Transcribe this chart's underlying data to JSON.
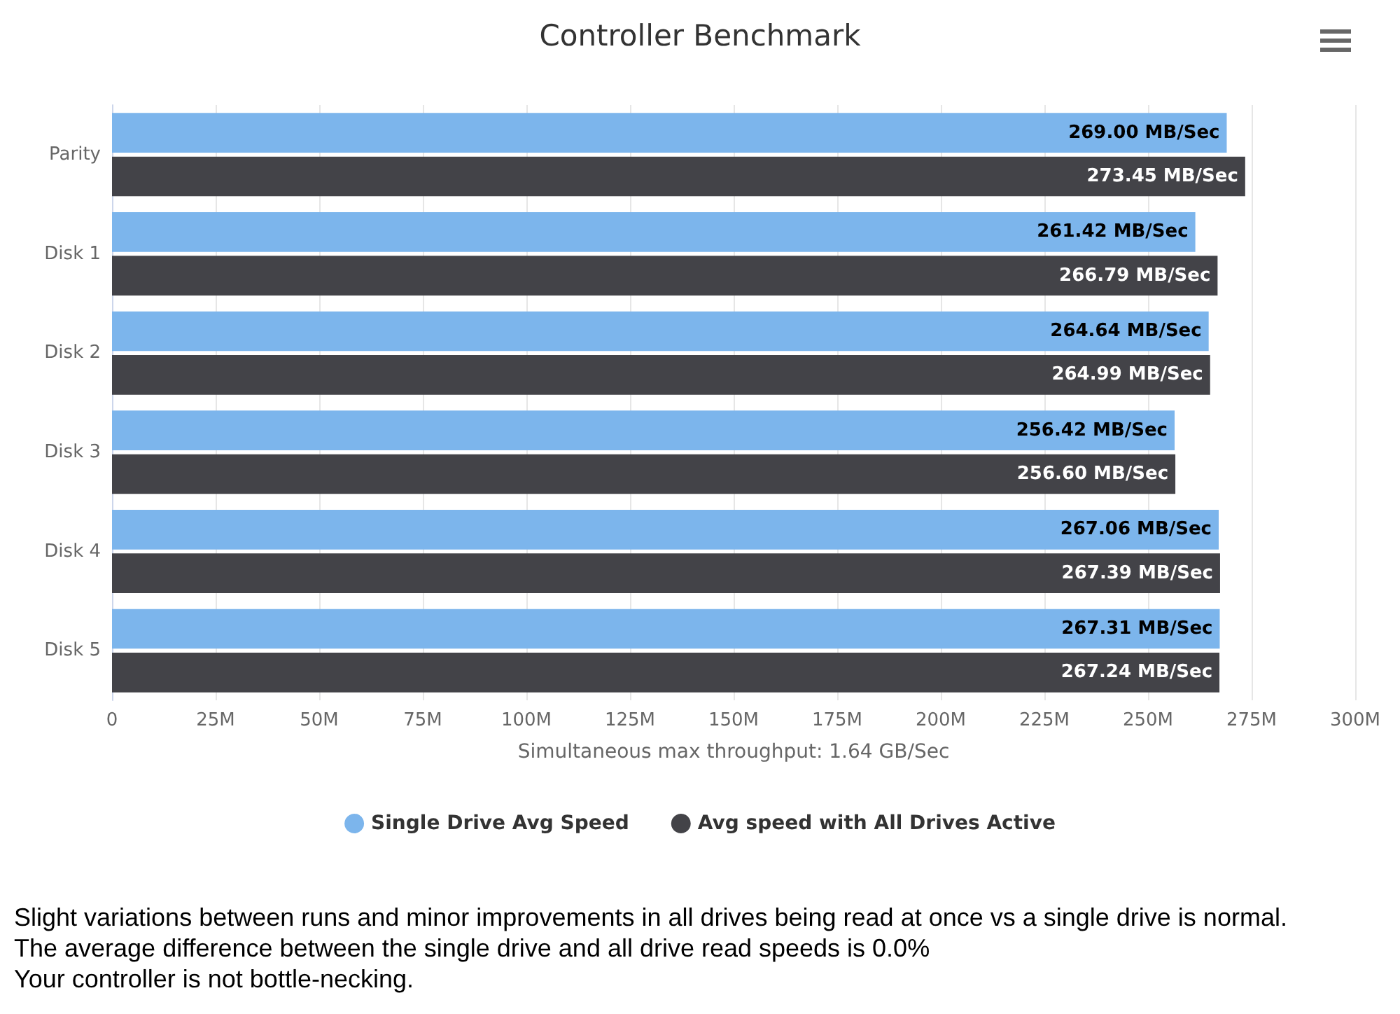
{
  "chart_data": {
    "type": "bar",
    "orientation": "horizontal",
    "title": "Controller Benchmark",
    "xlabel": "Simultaneous max throughput: 1.64 GB/Sec",
    "categories": [
      "Parity",
      "Disk 1",
      "Disk 2",
      "Disk 3",
      "Disk 4",
      "Disk 5"
    ],
    "series": [
      {
        "name": "Single Drive Avg Speed",
        "color": "#7cb5ec",
        "values": [
          269.0,
          261.42,
          264.64,
          256.42,
          267.06,
          267.31
        ],
        "value_labels": [
          "269.00 MB/Sec",
          "261.42 MB/Sec",
          "264.64 MB/Sec",
          "256.42 MB/Sec",
          "267.06 MB/Sec",
          "267.31 MB/Sec"
        ]
      },
      {
        "name": "Avg speed with All Drives Active",
        "color": "#434348",
        "values": [
          273.45,
          266.79,
          264.99,
          256.6,
          267.39,
          267.24
        ],
        "value_labels": [
          "273.45 MB/Sec",
          "266.79 MB/Sec",
          "264.99 MB/Sec",
          "256.60 MB/Sec",
          "267.39 MB/Sec",
          "267.24 MB/Sec"
        ]
      }
    ],
    "xlim": [
      0,
      300
    ],
    "xticks": [
      0,
      {
        "value": 25,
        "label": "25M"
      },
      {
        "value": 50,
        "label": "50M"
      },
      {
        "value": 75,
        "label": "75M"
      },
      {
        "value": 100,
        "label": "100M"
      },
      {
        "value": 125,
        "label": "125M"
      },
      {
        "value": 150,
        "label": "150M"
      },
      {
        "value": 175,
        "label": "175M"
      },
      {
        "value": 200,
        "label": "200M"
      },
      {
        "value": 225,
        "label": "225M"
      },
      {
        "value": 250,
        "label": "250M"
      },
      {
        "value": 275,
        "label": "275M"
      },
      {
        "value": 300,
        "label": "300M"
      }
    ],
    "grid": "x",
    "legend": "bottom",
    "annotations": [
      "Slight variations between runs and minor improvements in all drives being read at once vs a single drive is normal.",
      "The average difference between the single drive and all drive read speeds is 0.0%",
      "Your controller is not bottle-necking."
    ]
  }
}
